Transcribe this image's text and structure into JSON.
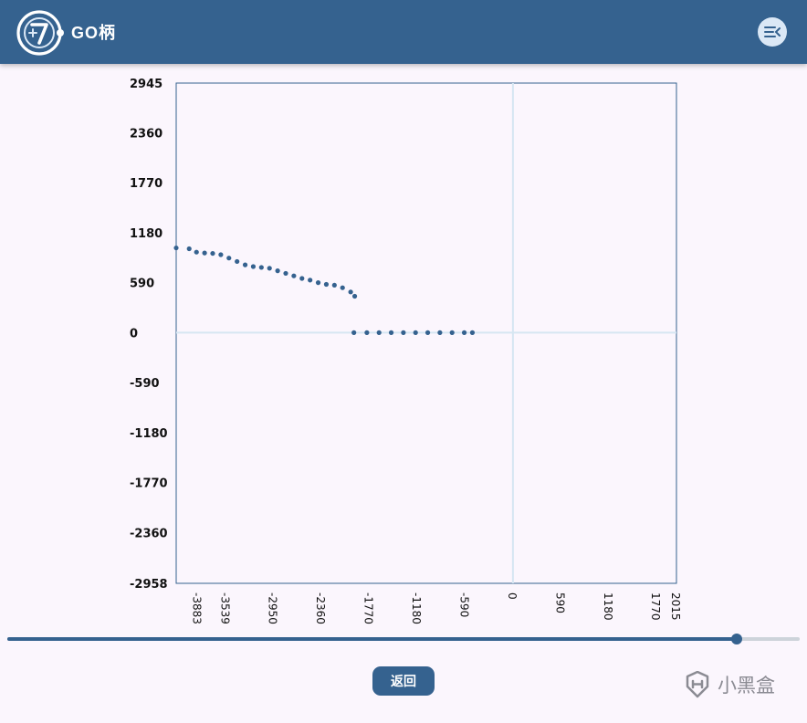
{
  "header": {
    "brand": "GO柄",
    "logo": "g7-logo",
    "menu_icon": "menu-collapse-icon"
  },
  "colors": {
    "accent": "#35628f",
    "background": "#fbf6fd",
    "axis_line": "#d6e6f2",
    "menu_bg": "#dbe8f6"
  },
  "chart_data": {
    "type": "scatter",
    "title": "",
    "xlabel": "",
    "ylabel": "",
    "xlim": [
      -4150,
      2015
    ],
    "ylim": [
      -2958,
      2945
    ],
    "grid": false,
    "x_ticks": [
      "-3883",
      "-3539",
      "-2950",
      "-2360",
      "-1770",
      "-1180",
      "-590",
      "0",
      "590",
      "1180",
      "1770",
      "2015"
    ],
    "y_ticks": [
      "2945",
      "2360",
      "1770",
      "1180",
      "590",
      "0",
      "-590",
      "-1180",
      "-1770",
      "-2360",
      "-2958"
    ],
    "series": [
      {
        "color": "#35628f",
        "points": [
          [
            -4150,
            1000
          ],
          [
            -3990,
            990
          ],
          [
            -3900,
            950
          ],
          [
            -3800,
            940
          ],
          [
            -3700,
            935
          ],
          [
            -3600,
            920
          ],
          [
            -3500,
            880
          ],
          [
            -3400,
            840
          ],
          [
            -3300,
            800
          ],
          [
            -3200,
            780
          ],
          [
            -3100,
            770
          ],
          [
            -3000,
            760
          ],
          [
            -2900,
            730
          ],
          [
            -2800,
            700
          ],
          [
            -2700,
            670
          ],
          [
            -2600,
            640
          ],
          [
            -2500,
            620
          ],
          [
            -2400,
            590
          ],
          [
            -2300,
            570
          ],
          [
            -2200,
            560
          ],
          [
            -2100,
            530
          ],
          [
            -2000,
            480
          ],
          [
            -1950,
            430
          ]
        ]
      },
      {
        "color": "#35628f",
        "points": [
          [
            -1960,
            0
          ],
          [
            -1800,
            0
          ],
          [
            -1650,
            0
          ],
          [
            -1500,
            0
          ],
          [
            -1350,
            0
          ],
          [
            -1200,
            0
          ],
          [
            -1050,
            0
          ],
          [
            -900,
            0
          ],
          [
            -750,
            0
          ],
          [
            -600,
            0
          ],
          [
            -500,
            0
          ]
        ]
      }
    ]
  },
  "slider": {
    "value_fraction": 0.92
  },
  "back_button": {
    "label": "返回"
  },
  "watermark": {
    "text": "小黑盒",
    "logo": "heybox-logo"
  }
}
